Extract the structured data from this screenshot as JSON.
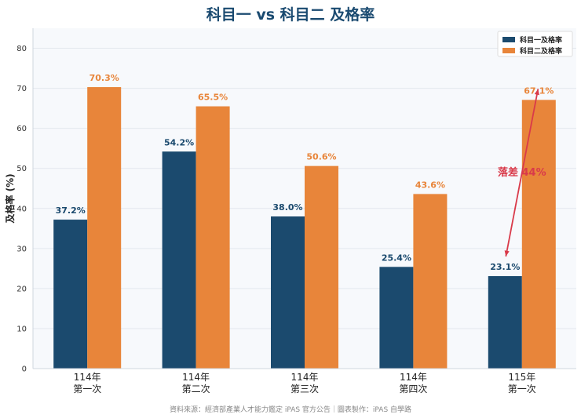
{
  "chart_data": {
    "type": "bar",
    "title": "科目一 vs 科目二 及格率",
    "xlabel": "",
    "ylabel": "及格率 (%)",
    "ylim": [
      0,
      85
    ],
    "yticks": [
      "0",
      "10",
      "20",
      "30",
      "40",
      "50",
      "60",
      "70",
      "80"
    ],
    "grid": true,
    "legend_position": "top-right",
    "categories": [
      [
        "114年",
        "第一次"
      ],
      [
        "114年",
        "第二次"
      ],
      [
        "114年",
        "第三次"
      ],
      [
        "114年",
        "第四次"
      ],
      [
        "115年",
        "第一次"
      ]
    ],
    "series": [
      {
        "name": "科目一及格率",
        "color": "#1b4a6e",
        "values": [
          37.2,
          54.2,
          38.0,
          25.4,
          23.1
        ],
        "labels": [
          "37.2%",
          "54.2%",
          "38.0%",
          "25.4%",
          "23.1%"
        ]
      },
      {
        "name": "科目二及格率",
        "color": "#e8853a",
        "values": [
          70.3,
          65.5,
          50.6,
          43.6,
          67.1
        ],
        "labels": [
          "70.3%",
          "65.5%",
          "50.6%",
          "43.6%",
          "67.1%"
        ]
      }
    ],
    "annotation": {
      "text": "落差 44%",
      "color": "#d93a4a",
      "category_index": 4,
      "from_value": 23.1,
      "to_value": 67.1
    }
  },
  "source_note": "資料來源：經濟部產業人才能力鑑定 iPAS 官方公告｜圖表製作：iPAS 自學路"
}
